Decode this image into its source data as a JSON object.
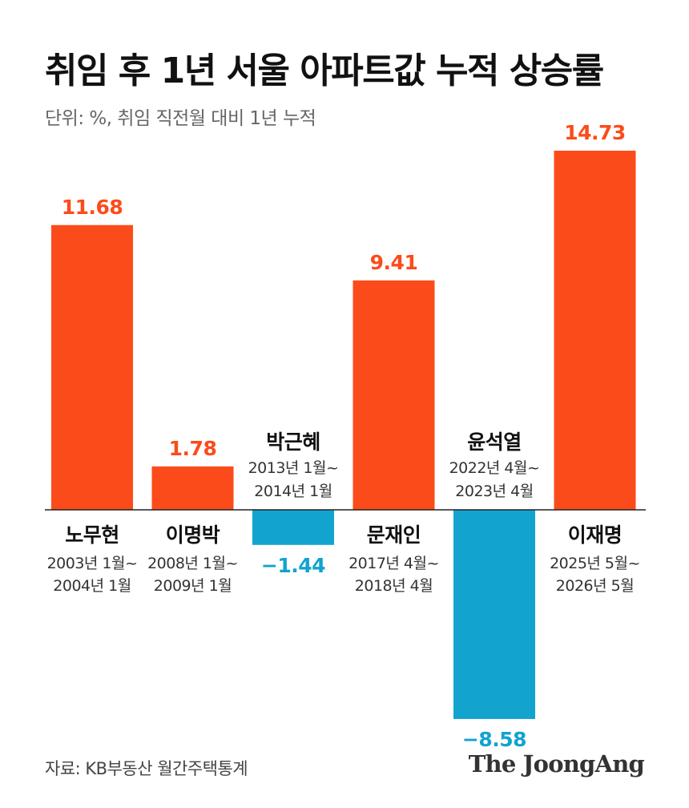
{
  "title": "취임 후 1년 서울 아파트값 누적 상승률",
  "subtitle": "단위: %, 취임 직전월 대비 1년 누적",
  "source": "자료: KB부동산 월간주택통계",
  "brand": "The JoongAng",
  "colors": {
    "positive": "#fc4b1a",
    "negative": "#12a3cf",
    "axis": "#222222",
    "label_text": "#111111",
    "period_text": "#333333"
  },
  "chart_data": {
    "type": "bar",
    "title": "취임 후 1년 서울 아파트값 누적 상승률",
    "subtitle": "단위: %, 취임 직전월 대비 1년 누적",
    "categories": [
      "노무현",
      "이명박",
      "박근혜",
      "문재인",
      "윤석열",
      "이재명"
    ],
    "periods": [
      [
        "2003년 1월~",
        "2004년 1월"
      ],
      [
        "2008년 1월~",
        "2009년 1월"
      ],
      [
        "2013년 1월~",
        "2014년 1월"
      ],
      [
        "2017년 4월~",
        "2018년 4월"
      ],
      [
        "2022년 4월~",
        "2023년 4월"
      ],
      [
        "2025년 5월~",
        "2026년 5월"
      ]
    ],
    "values": [
      11.68,
      1.78,
      -1.44,
      9.41,
      -8.58,
      14.73
    ],
    "value_labels": [
      "11.68",
      "1.78",
      "−1.44",
      "9.41",
      "−8.58",
      "14.73"
    ],
    "ylim": [
      -8.58,
      14.73
    ],
    "grid": false,
    "legend": "none"
  }
}
